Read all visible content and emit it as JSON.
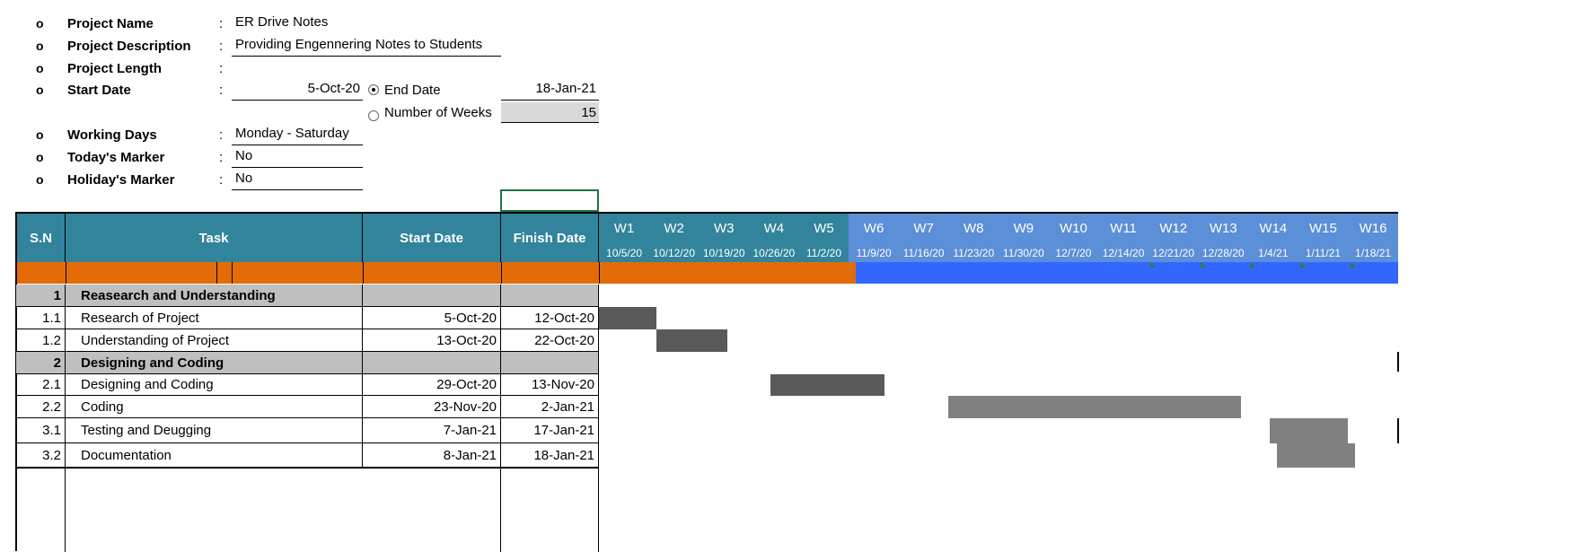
{
  "info": [
    {
      "bullet": "o",
      "label": "Project Name",
      "colon": ":",
      "value": "ER Drive Notes"
    },
    {
      "bullet": "o",
      "label": "Project Description",
      "colon": ":",
      "value": "Providing Engennering Notes to Students"
    },
    {
      "bullet": "o",
      "label": "Project Length",
      "colon": ":",
      "value": ""
    },
    {
      "bullet": "o",
      "label": "Start Date",
      "colon": ":",
      "value": "5-Oct-20"
    },
    {
      "bullet": "o",
      "label": "Working Days",
      "colon": ":",
      "value": "Monday - Saturday"
    },
    {
      "bullet": "o",
      "label": "Today's Marker",
      "colon": ":",
      "value": "No"
    },
    {
      "bullet": "o",
      "label": "Holiday's Marker",
      "colon": ":",
      "value": "No"
    }
  ],
  "length_options": {
    "end_date_label": "End Date",
    "end_date_value": "18-Jan-21",
    "end_date_selected": true,
    "weeks_label": "Number of Weeks",
    "weeks_value": "15"
  },
  "table": {
    "headers": {
      "sn": "S.N",
      "task": "Task",
      "start": "Start Date",
      "finish": "Finish Date"
    },
    "weeks": [
      {
        "name": "W1",
        "date": "10/5/20"
      },
      {
        "name": "W2",
        "date": "10/12/20"
      },
      {
        "name": "W3",
        "date": "10/19/20"
      },
      {
        "name": "W4",
        "date": "10/26/20"
      },
      {
        "name": "W5",
        "date": "11/2/20"
      },
      {
        "name": "W6",
        "date": "11/9/20"
      },
      {
        "name": "W7",
        "date": "11/16/20"
      },
      {
        "name": "W8",
        "date": "11/23/20"
      },
      {
        "name": "W9",
        "date": "11/30/20"
      },
      {
        "name": "W10",
        "date": "12/7/20"
      },
      {
        "name": "W11",
        "date": "12/14/20"
      },
      {
        "name": "W12",
        "date": "12/21/20"
      },
      {
        "name": "W13",
        "date": "12/28/20"
      },
      {
        "name": "W14",
        "date": "1/4/21"
      },
      {
        "name": "W15",
        "date": "1/11/21"
      },
      {
        "name": "W16",
        "date": "1/18/21"
      }
    ],
    "rows": [
      {
        "sn": "1",
        "task": "Reasearch and Understanding",
        "start": "",
        "finish": "",
        "group": true
      },
      {
        "sn": "1.1",
        "task": "Research of Project",
        "start": "5-Oct-20",
        "finish": "12-Oct-20",
        "group": false
      },
      {
        "sn": "1.2",
        "task": "Understanding of Project",
        "start": "13-Oct-20",
        "finish": "22-Oct-20",
        "group": false
      },
      {
        "sn": "2",
        "task": "Designing and Coding",
        "start": "",
        "finish": "",
        "group": true
      },
      {
        "sn": "2.1",
        "task": "Designing and Coding",
        "start": "29-Oct-20",
        "finish": "13-Nov-20",
        "group": false
      },
      {
        "sn": "2.2",
        "task": "Coding",
        "start": "23-Nov-20",
        "finish": "2-Jan-21",
        "group": false
      },
      {
        "sn": "3.1",
        "task": "Testing and Deugging",
        "start": "7-Jan-21",
        "finish": "17-Jan-21",
        "group": false
      },
      {
        "sn": "3.2",
        "task": "Documentation",
        "start": "8-Jan-21",
        "finish": "18-Jan-21",
        "group": false
      }
    ]
  },
  "colors": {
    "header_teal": "#31849b",
    "header_blue": "#5b8fd7",
    "progress_orange": "#e36c09",
    "progress_blue": "#3366ff",
    "group_gray": "#bfbfbf",
    "bar_dark": "#595959",
    "bar_gray": "#808080",
    "marker_green": "#2e7d32"
  }
}
